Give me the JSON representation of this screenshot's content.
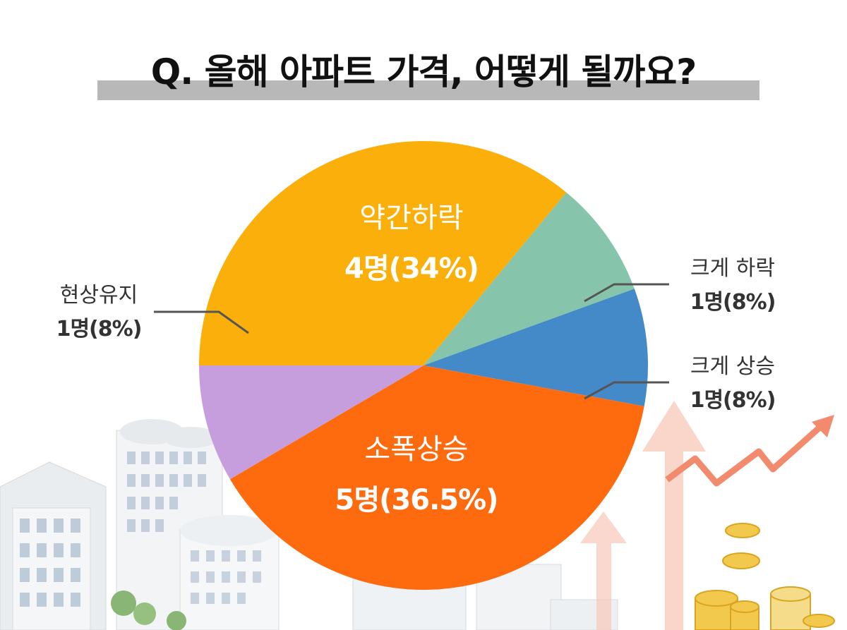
{
  "title": "Q. 올해 아파트 가격, 어떻게 될까요?",
  "chart_data": {
    "type": "pie",
    "title": "Q. 올해 아파트 가격, 어떻게 될까요?",
    "slices": [
      {
        "label": "약간하락",
        "count_label": "4명(34%)",
        "value": 34,
        "color": "#FAAF0A",
        "label_color": "#ffffff",
        "placement": "inside"
      },
      {
        "label": "크게 하락",
        "count_label": "1명(8%)",
        "value": 8,
        "color": "#86C4AC",
        "label_color": "#333333",
        "placement": "outside-right"
      },
      {
        "label": "크게 상승",
        "count_label": "1명(8%)",
        "value": 8,
        "color": "#4489C8",
        "label_color": "#333333",
        "placement": "outside-right"
      },
      {
        "label": "소폭상승",
        "count_label": "5명(36.5%)",
        "value": 36.5,
        "color": "#FE6A0E",
        "label_color": "#ffffff",
        "placement": "inside"
      },
      {
        "label": "현상유지",
        "count_label": "1명(8%)",
        "value": 8,
        "color": "#C79EDD",
        "label_color": "#333333",
        "placement": "outside-left"
      }
    ]
  }
}
